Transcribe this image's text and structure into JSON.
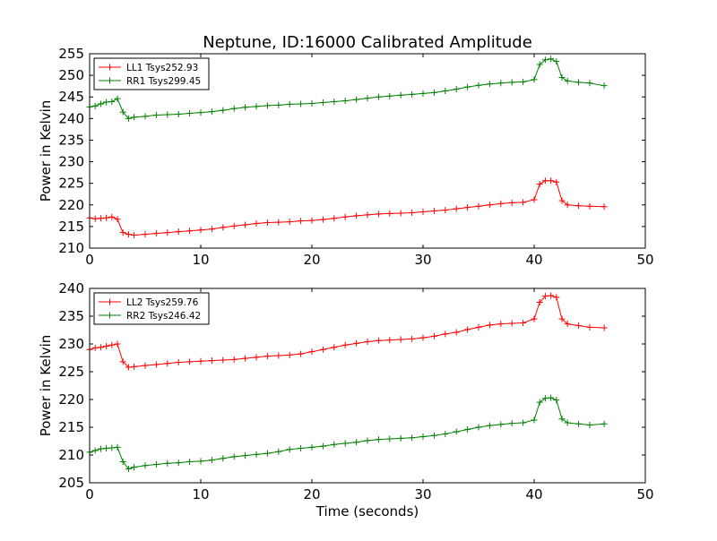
{
  "figure": {
    "title": "Neptune, ID:16000 Calibrated Amplitude"
  },
  "chart_data": [
    {
      "type": "line",
      "title": "Neptune, ID:16000 Calibrated Amplitude",
      "xlabel": "",
      "ylabel": "Power in Kelvin",
      "xlim": [
        0,
        50
      ],
      "ylim": [
        210,
        255
      ],
      "xticks": [
        "0",
        "10",
        "20",
        "30",
        "40",
        "50"
      ],
      "yticks": [
        "210",
        "215",
        "220",
        "225",
        "230",
        "235",
        "240",
        "245",
        "250",
        "255"
      ],
      "grid": false,
      "legend_position": "upper-left",
      "series": [
        {
          "name": "LL1 Tsys252.93",
          "color": "#ff0000",
          "marker": "+",
          "x": [
            0.0,
            0.5,
            1.0,
            1.5,
            2.0,
            2.5,
            3.0,
            3.5,
            4.0,
            5.0,
            6.0,
            7.0,
            8.0,
            9.0,
            10.0,
            11.0,
            12.0,
            13.0,
            14.0,
            15.0,
            16.0,
            17.0,
            18.0,
            19.0,
            20.0,
            21.0,
            22.0,
            23.0,
            24.0,
            25.0,
            26.0,
            27.0,
            28.0,
            29.0,
            30.0,
            31.0,
            32.0,
            33.0,
            34.0,
            35.0,
            36.0,
            37.0,
            38.0,
            39.0,
            40.0,
            40.5,
            41.0,
            41.5,
            42.0,
            42.5,
            43.0,
            44.0,
            45.0,
            46.3
          ],
          "y": [
            217.0,
            216.8,
            216.9,
            217.0,
            217.2,
            216.7,
            213.6,
            213.2,
            213.0,
            213.2,
            213.4,
            213.6,
            213.8,
            214.0,
            214.2,
            214.4,
            214.8,
            215.1,
            215.4,
            215.7,
            215.9,
            216.0,
            216.1,
            216.3,
            216.4,
            216.6,
            216.9,
            217.2,
            217.5,
            217.7,
            217.9,
            218.0,
            218.1,
            218.2,
            218.4,
            218.6,
            218.8,
            219.1,
            219.4,
            219.7,
            220.0,
            220.3,
            220.5,
            220.6,
            221.2,
            224.8,
            225.6,
            225.6,
            225.3,
            221.0,
            220.0,
            219.8,
            219.7,
            219.6
          ]
        },
        {
          "name": "RR1 Tsys299.45",
          "color": "#008000",
          "marker": "+",
          "x": [
            0.0,
            0.5,
            1.0,
            1.5,
            2.0,
            2.5,
            3.0,
            3.5,
            4.0,
            5.0,
            6.0,
            7.0,
            8.0,
            9.0,
            10.0,
            11.0,
            12.0,
            13.0,
            14.0,
            15.0,
            16.0,
            17.0,
            18.0,
            19.0,
            20.0,
            21.0,
            22.0,
            23.0,
            24.0,
            25.0,
            26.0,
            27.0,
            28.0,
            29.0,
            30.0,
            31.0,
            32.0,
            33.0,
            34.0,
            35.0,
            36.0,
            37.0,
            38.0,
            39.0,
            40.0,
            40.5,
            41.0,
            41.5,
            42.0,
            42.5,
            43.0,
            44.0,
            45.0,
            46.3
          ],
          "y": [
            242.7,
            242.9,
            243.4,
            243.8,
            243.9,
            244.6,
            241.5,
            240.0,
            240.3,
            240.5,
            240.8,
            240.9,
            241.0,
            241.2,
            241.4,
            241.6,
            241.9,
            242.3,
            242.6,
            242.8,
            243.0,
            243.1,
            243.3,
            243.4,
            243.5,
            243.7,
            243.9,
            244.1,
            244.4,
            244.7,
            245.0,
            245.2,
            245.4,
            245.6,
            245.8,
            246.0,
            246.4,
            246.8,
            247.3,
            247.7,
            248.0,
            248.2,
            248.4,
            248.5,
            249.0,
            252.5,
            253.6,
            253.8,
            253.2,
            249.5,
            248.7,
            248.4,
            248.2,
            247.6
          ]
        }
      ]
    },
    {
      "type": "line",
      "title": "",
      "xlabel": "Time (seconds)",
      "ylabel": "Power in Kelvin",
      "xlim": [
        0,
        50
      ],
      "ylim": [
        205,
        240
      ],
      "xticks": [
        "0",
        "10",
        "20",
        "30",
        "40",
        "50"
      ],
      "yticks": [
        "205",
        "210",
        "215",
        "220",
        "225",
        "230",
        "235",
        "240"
      ],
      "grid": false,
      "legend_position": "upper-left",
      "series": [
        {
          "name": "LL2 Tsys259.76",
          "color": "#ff0000",
          "marker": "+",
          "x": [
            0.0,
            0.5,
            1.0,
            1.5,
            2.0,
            2.5,
            3.0,
            3.5,
            4.0,
            5.0,
            6.0,
            7.0,
            8.0,
            9.0,
            10.0,
            11.0,
            12.0,
            13.0,
            14.0,
            15.0,
            16.0,
            17.0,
            18.0,
            19.0,
            20.0,
            21.0,
            22.0,
            23.0,
            24.0,
            25.0,
            26.0,
            27.0,
            28.0,
            29.0,
            30.0,
            31.0,
            32.0,
            33.0,
            34.0,
            35.0,
            36.0,
            37.0,
            38.0,
            39.0,
            40.0,
            40.5,
            41.0,
            41.5,
            42.0,
            42.5,
            43.0,
            44.0,
            45.0,
            46.3
          ],
          "y": [
            229.0,
            229.3,
            229.4,
            229.6,
            229.8,
            230.0,
            226.8,
            225.8,
            225.9,
            226.1,
            226.3,
            226.5,
            226.7,
            226.8,
            226.9,
            227.0,
            227.1,
            227.2,
            227.4,
            227.6,
            227.8,
            227.9,
            228.0,
            228.2,
            228.6,
            229.0,
            229.4,
            229.8,
            230.1,
            230.4,
            230.6,
            230.7,
            230.8,
            230.9,
            231.1,
            231.4,
            231.8,
            232.1,
            232.6,
            233.0,
            233.4,
            233.6,
            233.7,
            233.8,
            234.5,
            237.5,
            238.6,
            238.7,
            238.4,
            234.5,
            233.6,
            233.3,
            233.0,
            232.9
          ]
        },
        {
          "name": "RR2 Tsys246.42",
          "color": "#008000",
          "marker": "+",
          "x": [
            0.0,
            0.5,
            1.0,
            1.5,
            2.0,
            2.5,
            3.0,
            3.5,
            4.0,
            5.0,
            6.0,
            7.0,
            8.0,
            9.0,
            10.0,
            11.0,
            12.0,
            13.0,
            14.0,
            15.0,
            16.0,
            17.0,
            18.0,
            19.0,
            20.0,
            21.0,
            22.0,
            23.0,
            24.0,
            25.0,
            26.0,
            27.0,
            28.0,
            29.0,
            30.0,
            31.0,
            32.0,
            33.0,
            34.0,
            35.0,
            36.0,
            37.0,
            38.0,
            39.0,
            40.0,
            40.5,
            41.0,
            41.5,
            42.0,
            42.5,
            43.0,
            44.0,
            45.0,
            46.3
          ],
          "y": [
            210.5,
            210.8,
            211.1,
            211.2,
            211.3,
            211.4,
            208.8,
            207.5,
            207.8,
            208.1,
            208.3,
            208.5,
            208.6,
            208.8,
            208.9,
            209.1,
            209.4,
            209.7,
            209.9,
            210.1,
            210.3,
            210.6,
            211.0,
            211.2,
            211.4,
            211.6,
            211.9,
            212.1,
            212.3,
            212.6,
            212.8,
            212.9,
            213.0,
            213.1,
            213.3,
            213.5,
            213.8,
            214.2,
            214.6,
            215.0,
            215.3,
            215.5,
            215.7,
            215.8,
            216.3,
            219.5,
            220.2,
            220.3,
            219.9,
            216.5,
            215.8,
            215.6,
            215.4,
            215.6
          ]
        }
      ]
    }
  ]
}
